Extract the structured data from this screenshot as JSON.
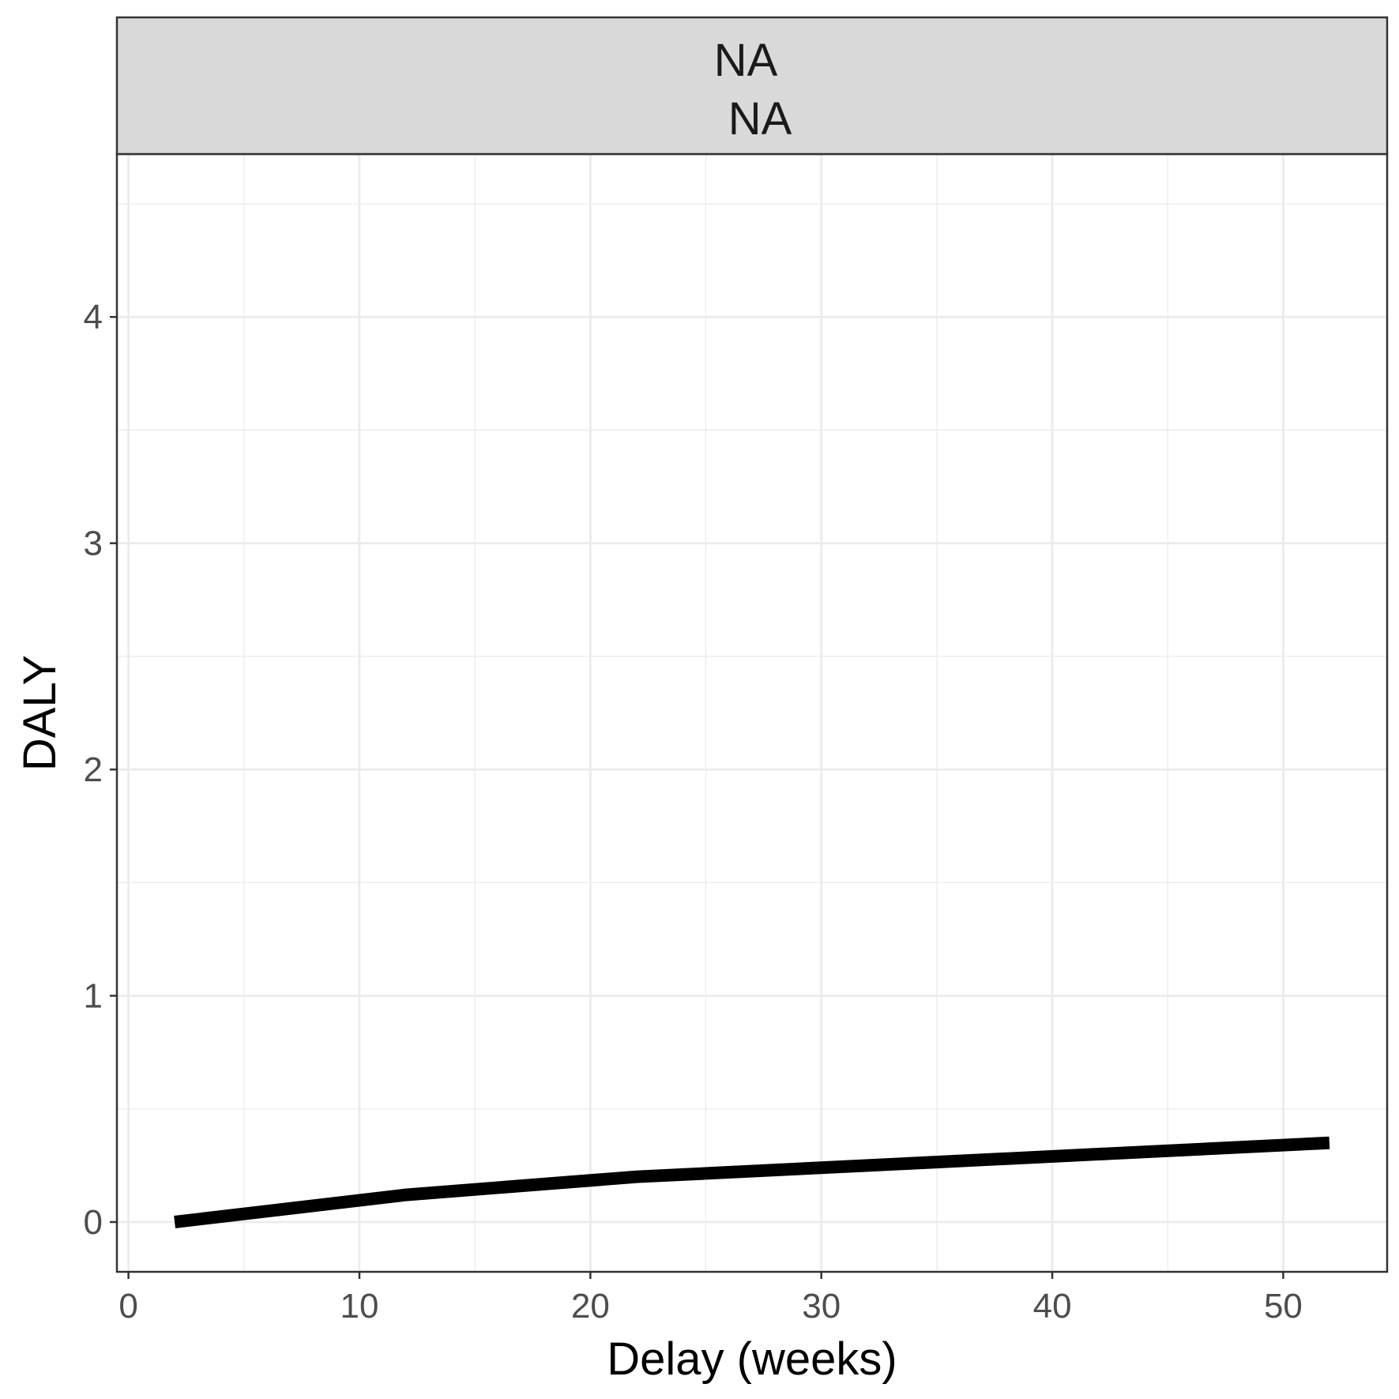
{
  "chart_data": {
    "type": "line",
    "facet_strip": [
      "NA",
      "NA"
    ],
    "xlabel": "Delay (weeks)",
    "ylabel": "DALY",
    "xlim": [
      -0.5,
      54.5
    ],
    "ylim": [
      -0.22,
      4.72
    ],
    "x_ticks": [
      0,
      10,
      20,
      30,
      40,
      50
    ],
    "y_ticks": [
      0,
      1,
      2,
      3,
      4
    ],
    "grid": true,
    "series": [
      {
        "x": [
          2,
          12,
          22,
          32,
          42,
          52
        ],
        "y": [
          0.0,
          0.12,
          0.2,
          0.25,
          0.3,
          0.35
        ],
        "band_upper": [
          0.0,
          0.12,
          0.21,
          0.26,
          0.31,
          0.36
        ],
        "band_lower": [
          -0.01,
          0.11,
          0.19,
          0.24,
          0.28,
          0.33
        ]
      }
    ],
    "colors": {
      "line": "#000000",
      "band": "#a6a6a6",
      "strip_fill": "#d9d9d9",
      "grid": "#ebebeb",
      "panel_border": "#333333"
    }
  }
}
